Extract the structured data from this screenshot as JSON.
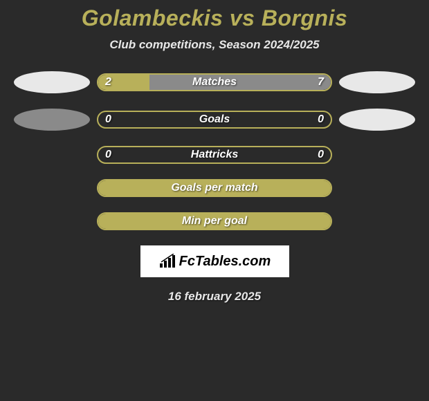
{
  "title": "Golambeckis vs Borgnis",
  "subtitle": "Club competitions, Season 2024/2025",
  "date": "16 february 2025",
  "logo_text": "FcTables.com",
  "colors": {
    "background": "#2a2a2a",
    "title": "#b8b05a",
    "olive_border": "#b8b05a",
    "olive_fill": "#b8b05a",
    "gray_bar": "#8a8a8a",
    "avatar_light": "#e8e8e8",
    "avatar_gray": "#8a8a8a",
    "text": "#ffffff"
  },
  "stats": [
    {
      "label": "Matches",
      "left_val": "2",
      "right_val": "7",
      "left_pct": 22,
      "right_pct": 78,
      "right_color": "#8a8a8a",
      "border_color": "#b8b05a",
      "left_color": "#b8b05a",
      "show_avatars": true,
      "left_avatar_gray": false,
      "right_avatar_gray": false
    },
    {
      "label": "Goals",
      "left_val": "0",
      "right_val": "0",
      "left_pct": 0,
      "right_pct": 0,
      "right_color": "#8a8a8a",
      "border_color": "#b8b05a",
      "left_color": "#b8b05a",
      "show_avatars": true,
      "left_avatar_gray": true,
      "right_avatar_gray": false
    },
    {
      "label": "Hattricks",
      "left_val": "0",
      "right_val": "0",
      "left_pct": 0,
      "right_pct": 0,
      "right_color": "#8a8a8a",
      "border_color": "#b8b05a",
      "left_color": "#b8b05a",
      "show_avatars": false
    },
    {
      "label": "Goals per match",
      "left_val": "",
      "right_val": "",
      "left_pct": 100,
      "right_pct": 0,
      "right_color": "#8a8a8a",
      "border_color": "#b8b05a",
      "left_color": "#b8b05a",
      "show_avatars": false
    },
    {
      "label": "Min per goal",
      "left_val": "",
      "right_val": "",
      "left_pct": 100,
      "right_pct": 0,
      "right_color": "#8a8a8a",
      "border_color": "#b8b05a",
      "left_color": "#b8b05a",
      "show_avatars": false
    }
  ]
}
